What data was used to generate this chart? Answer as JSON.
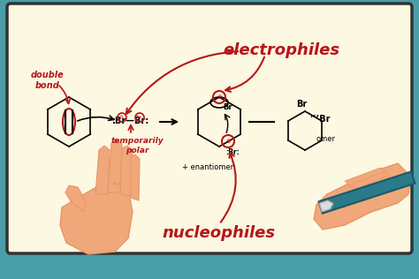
{
  "bg_outer": "#4a9eaa",
  "bg_screen": "#fdf8e1",
  "title_electrophiles": "electrophiles",
  "title_nucleophiles": "nucleophiles",
  "label_double_bond": "double\nbond",
  "label_temporarily": "temporarily\npolar",
  "label_enantiomer": "+ enantiomer",
  "text_color_red": "#b5161a",
  "text_color_black": "#111111",
  "hand_skin": "#f0a87a",
  "hand_dark": "#e8956a",
  "marker_color": "#2a7a8a",
  "marker_edge": "#1a5a6a"
}
